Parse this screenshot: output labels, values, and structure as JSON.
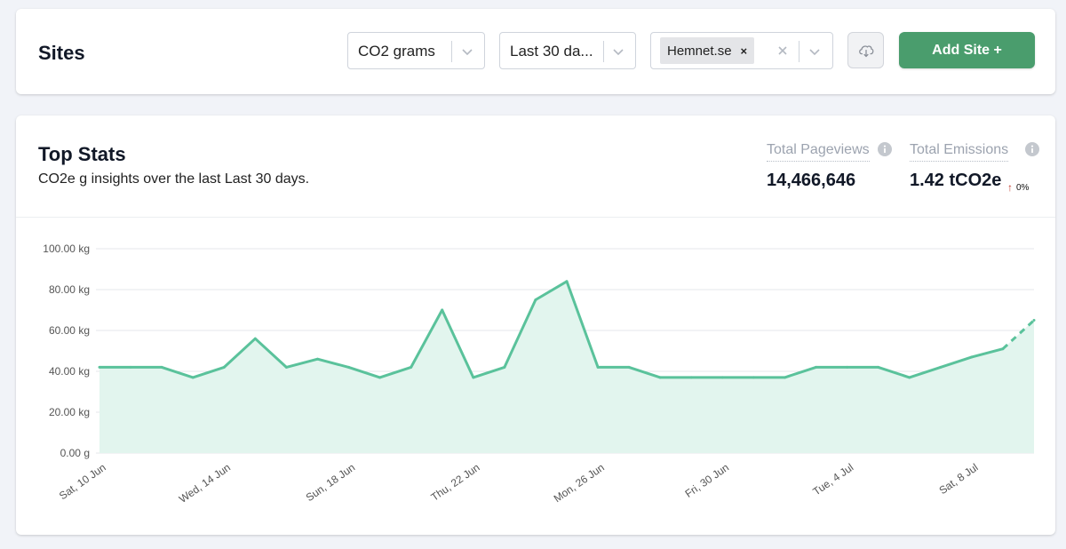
{
  "sites_card": {
    "title": "Sites",
    "metric_select": {
      "value": "CO2 grams"
    },
    "period_select": {
      "value": "Last 30 da..."
    },
    "site_select": {
      "chip": "Hemnet.se",
      "chip_remove": "×"
    },
    "download_icon": "cloud-download-icon",
    "add_button": "Add Site +"
  },
  "stats_card": {
    "title": "Top Stats",
    "subtitle": "CO2e g insights over the last Last 30 days.",
    "pageviews": {
      "label": "Total Pageviews",
      "value": "14,466,646"
    },
    "emissions": {
      "label": "Total Emissions",
      "value": "1.42 tCO2e",
      "change": "0%",
      "trend_color": "#c0392b"
    }
  },
  "colors": {
    "accent": "#4a9d6d",
    "line": "#5ac29b",
    "area": "#e2f5ee"
  },
  "chart_data": {
    "type": "area",
    "ylabel": "",
    "xlabel": "",
    "ylim": [
      0,
      100
    ],
    "y_ticks": [
      "0.00 g",
      "20.00 kg",
      "40.00 kg",
      "60.00 kg",
      "80.00 kg",
      "100.00 kg"
    ],
    "x_tick_labels": [
      {
        "label": "Sat, 10 Jun",
        "index": 0
      },
      {
        "label": "Wed, 14 Jun",
        "index": 4
      },
      {
        "label": "Sun, 18 Jun",
        "index": 8
      },
      {
        "label": "Thu, 22 Jun",
        "index": 12
      },
      {
        "label": "Mon, 26 Jun",
        "index": 16
      },
      {
        "label": "Fri, 30 Jun",
        "index": 20
      },
      {
        "label": "Tue, 4 Jul",
        "index": 24
      },
      {
        "label": "Sat, 8 Jul",
        "index": 28
      }
    ],
    "x": [
      "10 Jun",
      "11 Jun",
      "12 Jun",
      "13 Jun",
      "14 Jun",
      "15 Jun",
      "16 Jun",
      "17 Jun",
      "18 Jun",
      "19 Jun",
      "20 Jun",
      "21 Jun",
      "22 Jun",
      "23 Jun",
      "24 Jun",
      "25 Jun",
      "26 Jun",
      "27 Jun",
      "28 Jun",
      "29 Jun",
      "30 Jun",
      "1 Jul",
      "2 Jul",
      "3 Jul",
      "4 Jul",
      "5 Jul",
      "6 Jul",
      "7 Jul",
      "8 Jul",
      "9 Jul",
      "10 Jul"
    ],
    "series": [
      {
        "values": [
          42,
          42,
          42,
          37,
          42,
          56,
          42,
          46,
          42,
          37,
          42,
          70,
          37,
          42,
          75,
          84,
          42,
          42,
          37,
          37,
          37,
          37,
          37,
          42,
          42,
          42,
          37,
          42,
          47,
          51,
          65
        ],
        "projected_from_index": 29
      }
    ],
    "grid": true,
    "legend": "none"
  }
}
